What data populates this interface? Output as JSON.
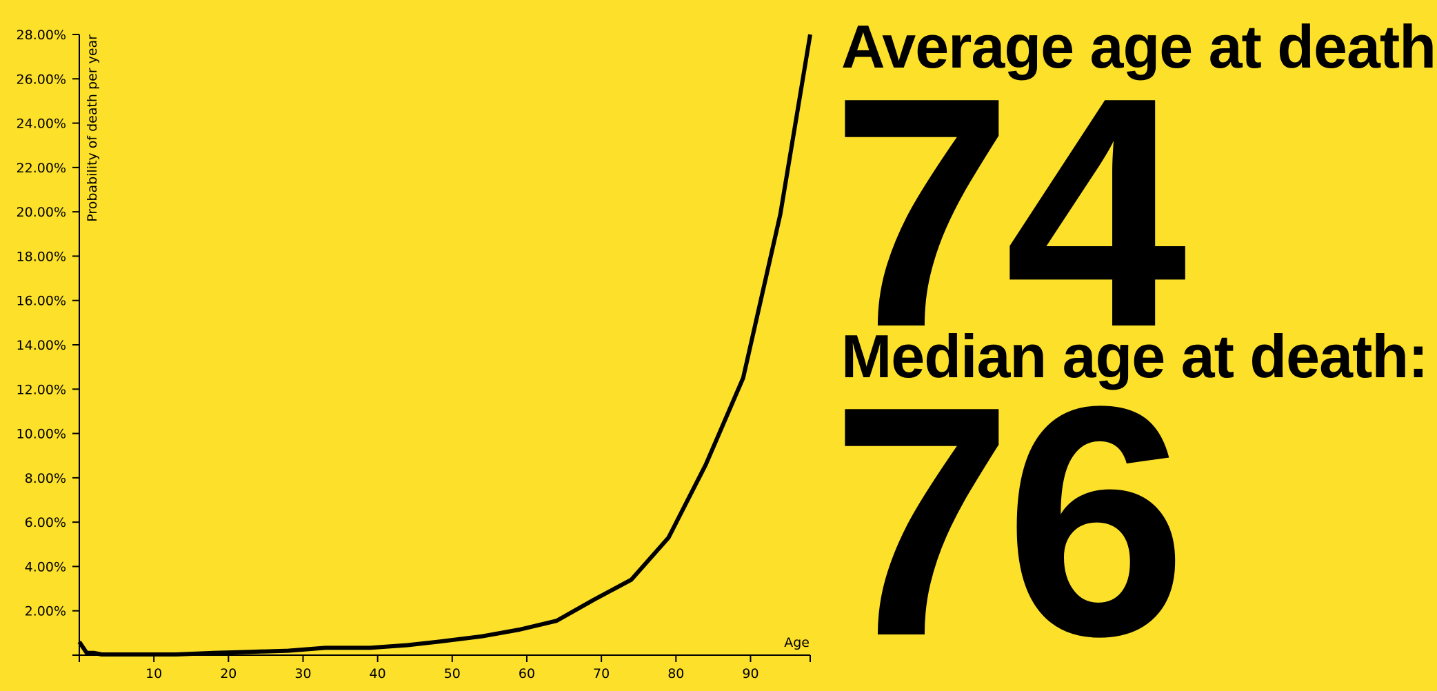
{
  "chart_data": {
    "type": "line",
    "xlabel": "Age",
    "ylabel": "Probability of death per year",
    "xlim": [
      0,
      98
    ],
    "ylim": [
      0,
      28
    ],
    "x_ticks": [
      10,
      20,
      30,
      40,
      50,
      60,
      70,
      80,
      90
    ],
    "y_ticks": [
      2,
      4,
      6,
      8,
      10,
      12,
      14,
      16,
      18,
      20,
      22,
      24,
      26,
      28
    ],
    "y_tick_labels": [
      "2.00%",
      "4.00%",
      "6.00%",
      "8.00%",
      "10.00%",
      "12.00%",
      "14.00%",
      "16.00%",
      "18.00%",
      "20.00%",
      "22.00%",
      "24.00%",
      "26.00%",
      "28.00%"
    ],
    "series": [
      {
        "name": "Probability of death per year",
        "x": [
          0,
          1,
          2,
          3,
          5,
          10,
          13,
          18,
          23,
          28,
          33,
          38,
          39,
          44,
          48,
          54,
          59,
          64,
          69,
          74,
          79,
          84,
          89,
          94,
          98
        ],
        "values": [
          0.6,
          0.1,
          0.1,
          0.03,
          0.03,
          0.03,
          0.03,
          0.1,
          0.15,
          0.2,
          0.33,
          0.33,
          0.33,
          0.45,
          0.6,
          0.85,
          1.15,
          1.55,
          2.5,
          3.4,
          5.3,
          8.6,
          12.5,
          19.9,
          28.0
        ]
      }
    ]
  },
  "stats": {
    "average_label": "Average age at death:",
    "average_value": "74",
    "median_label": "Median age at death:",
    "median_value": "76"
  },
  "colors": {
    "background": "#FCE02A",
    "ink": "#000000"
  }
}
